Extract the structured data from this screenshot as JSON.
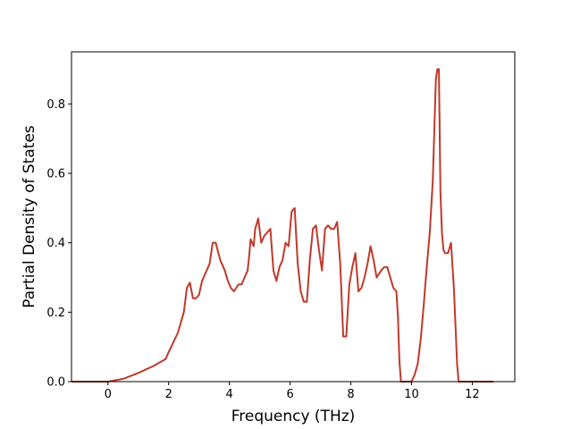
{
  "chart_data": {
    "type": "line",
    "title": "",
    "xlabel": "Frequency (THz)",
    "ylabel": "Partial Density of States",
    "xlim": [
      -1.2,
      13.4
    ],
    "ylim": [
      0.0,
      0.95
    ],
    "grid": false,
    "xticks": [
      0,
      2,
      4,
      6,
      8,
      10,
      12
    ],
    "yticks": [
      0.0,
      0.2,
      0.4,
      0.6,
      0.8
    ],
    "xtick_labels": [
      "0",
      "2",
      "4",
      "6",
      "8",
      "10",
      "12"
    ],
    "ytick_labels": [
      "0.0",
      "0.2",
      "0.4",
      "0.6",
      "0.8"
    ],
    "series": [
      {
        "color": "#c0392b",
        "x": [
          -1.2,
          0.0,
          0.5,
          1.0,
          1.5,
          1.9,
          2.0,
          2.3,
          2.5,
          2.6,
          2.7,
          2.8,
          2.9,
          3.0,
          3.1,
          3.2,
          3.35,
          3.45,
          3.55,
          3.7,
          3.85,
          3.95,
          4.05,
          4.15,
          4.3,
          4.4,
          4.5,
          4.6,
          4.65,
          4.7,
          4.8,
          4.85,
          4.95,
          5.05,
          5.15,
          5.25,
          5.35,
          5.45,
          5.55,
          5.65,
          5.75,
          5.85,
          5.95,
          6.05,
          6.15,
          6.25,
          6.35,
          6.45,
          6.55,
          6.65,
          6.75,
          6.85,
          6.95,
          7.05,
          7.15,
          7.25,
          7.35,
          7.45,
          7.55,
          7.65,
          7.75,
          7.85,
          7.95,
          8.05,
          8.15,
          8.25,
          8.35,
          8.45,
          8.55,
          8.65,
          8.75,
          8.85,
          9.0,
          9.1,
          9.2,
          9.3,
          9.4,
          9.5,
          9.55,
          9.6,
          9.65,
          9.7,
          9.75,
          9.8,
          9.9,
          10.0,
          10.1,
          10.2,
          10.3,
          10.4,
          10.5,
          10.6,
          10.7,
          10.8,
          10.85,
          10.9,
          10.95,
          11.0,
          11.05,
          11.1,
          11.2,
          11.3,
          11.4,
          11.5,
          11.55,
          11.6,
          11.65,
          11.7,
          11.8,
          12.0,
          12.7
        ],
        "y": [
          0.0,
          0.0,
          0.008,
          0.025,
          0.045,
          0.065,
          0.085,
          0.14,
          0.2,
          0.27,
          0.285,
          0.24,
          0.24,
          0.25,
          0.29,
          0.31,
          0.34,
          0.4,
          0.4,
          0.35,
          0.32,
          0.29,
          0.27,
          0.26,
          0.28,
          0.28,
          0.3,
          0.32,
          0.36,
          0.41,
          0.39,
          0.44,
          0.47,
          0.4,
          0.42,
          0.43,
          0.44,
          0.32,
          0.29,
          0.33,
          0.35,
          0.4,
          0.39,
          0.49,
          0.5,
          0.34,
          0.26,
          0.23,
          0.23,
          0.35,
          0.44,
          0.45,
          0.38,
          0.32,
          0.44,
          0.45,
          0.44,
          0.44,
          0.46,
          0.34,
          0.13,
          0.13,
          0.28,
          0.33,
          0.37,
          0.26,
          0.27,
          0.3,
          0.34,
          0.39,
          0.35,
          0.3,
          0.32,
          0.33,
          0.33,
          0.3,
          0.27,
          0.26,
          0.19,
          0.06,
          0.0,
          0.0,
          0.0,
          0.0,
          0.0,
          0.0,
          0.02,
          0.05,
          0.12,
          0.22,
          0.33,
          0.43,
          0.58,
          0.87,
          0.9,
          0.9,
          0.55,
          0.43,
          0.38,
          0.37,
          0.37,
          0.4,
          0.26,
          0.05,
          0.0,
          0.0,
          0.0,
          0.0,
          0.0,
          0.0,
          0.0
        ]
      }
    ]
  }
}
